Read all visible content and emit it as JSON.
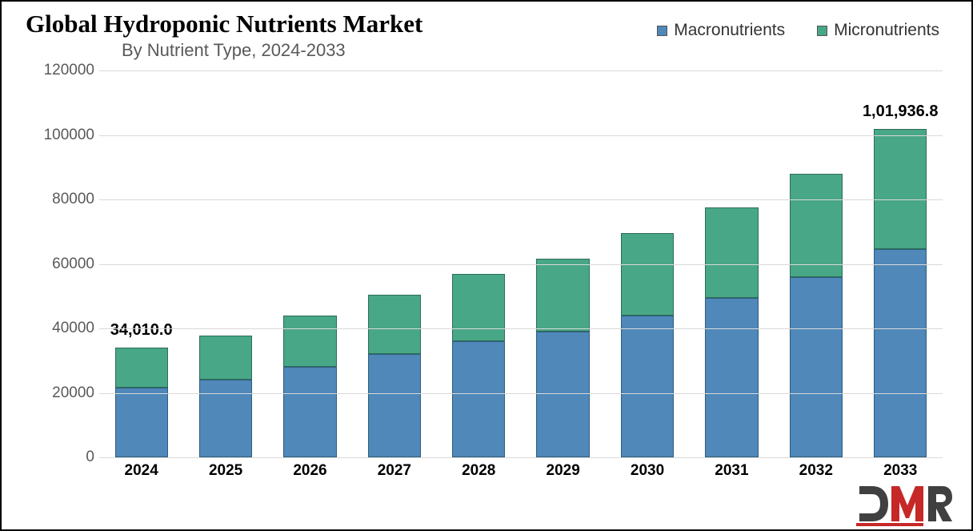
{
  "title": "Global Hydroponic Nutrients Market",
  "subtitle": "By Nutrient Type, 2024-2033",
  "title_fontsize": 31,
  "subtitle_fontsize": 22,
  "subtitle_color": "#595959",
  "legend": {
    "items": [
      {
        "label": "Macronutrients",
        "color": "#4f88b9"
      },
      {
        "label": "Micronutrients",
        "color": "#48a787"
      }
    ],
    "fontsize": 21,
    "position": "top-right"
  },
  "chart": {
    "type": "stacked-bar",
    "background_color": "#ffffff",
    "grid_color": "#d9d9d9",
    "yaxis": {
      "min": 0,
      "max": 120000,
      "tick_step": 20000,
      "ticks": [
        0,
        20000,
        40000,
        60000,
        80000,
        100000,
        120000
      ],
      "label_fontsize": 19,
      "label_color": "#595959"
    },
    "xaxis": {
      "categories": [
        "2024",
        "2025",
        "2026",
        "2027",
        "2028",
        "2029",
        "2030",
        "2031",
        "2032",
        "2033"
      ],
      "label_fontsize": 19,
      "label_fontweight": "bold"
    },
    "series": [
      {
        "name": "Macronutrients",
        "color": "#4f88b9",
        "border_color": "#2e5d7d",
        "values": [
          21500,
          24000,
          28000,
          32000,
          36000,
          39000,
          44000,
          49500,
          56000,
          64500
        ]
      },
      {
        "name": "Micronutrients",
        "color": "#48a787",
        "border_color": "#2e6d55",
        "values": [
          12510,
          13800,
          16000,
          18500,
          21000,
          22500,
          25500,
          28000,
          32000,
          37436.8
        ]
      }
    ],
    "totals": [
      34010.0,
      37800,
      44000,
      50500,
      57000,
      61500,
      69500,
      77500,
      88000,
      101936.8
    ],
    "data_labels": {
      "0": "34,010.0",
      "9": "1,01,936.8"
    },
    "data_label_fontsize": 20,
    "data_label_fontweight": "bold",
    "bar_width_ratio": 0.7
  },
  "logo": {
    "text": "DMR",
    "d_color": "#404040",
    "m_color": "#c62828",
    "r_color": "#404040",
    "underline_color": "#c62828"
  }
}
